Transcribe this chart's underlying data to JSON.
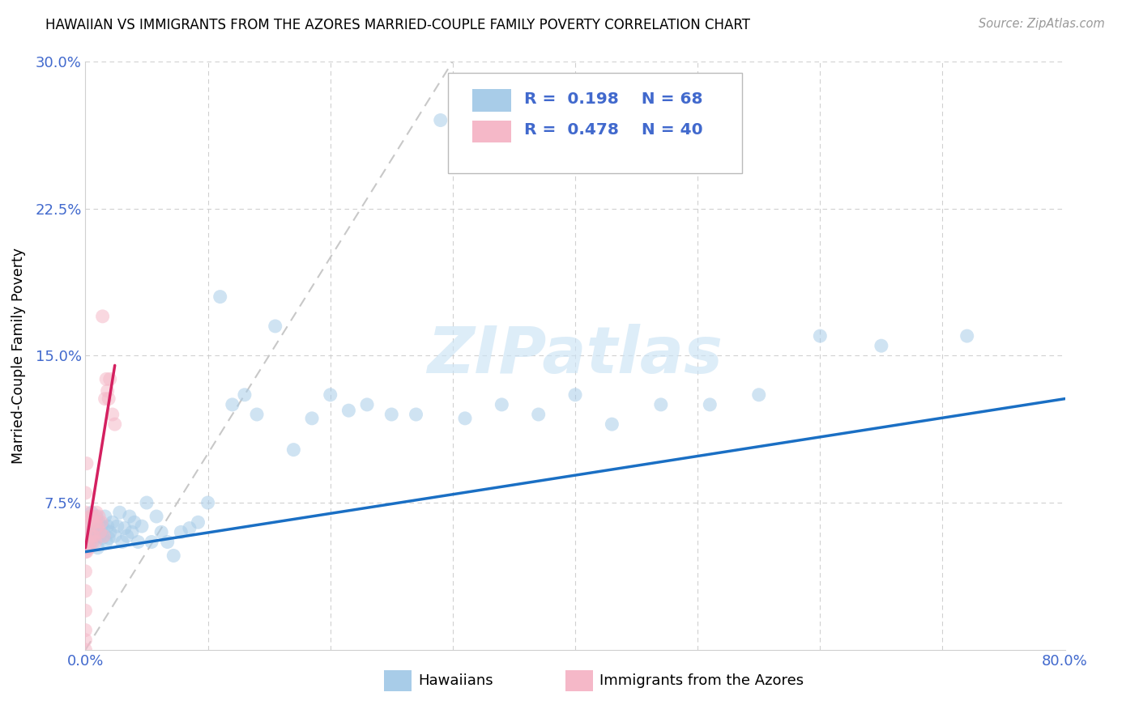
{
  "title": "HAWAIIAN VS IMMIGRANTS FROM THE AZORES MARRIED-COUPLE FAMILY POVERTY CORRELATION CHART",
  "source": "Source: ZipAtlas.com",
  "ylabel": "Married-Couple Family Poverty",
  "xlim": [
    0.0,
    0.8
  ],
  "ylim": [
    0.0,
    0.3
  ],
  "xtick_vals": [
    0.0,
    0.1,
    0.2,
    0.3,
    0.4,
    0.5,
    0.6,
    0.7,
    0.8
  ],
  "xticklabels": [
    "0.0%",
    "",
    "",
    "",
    "",
    "",
    "",
    "",
    "80.0%"
  ],
  "ytick_vals": [
    0.0,
    0.075,
    0.15,
    0.225,
    0.3
  ],
  "yticklabels": [
    "",
    "7.5%",
    "15.0%",
    "22.5%",
    "30.0%"
  ],
  "watermark_text": "ZIPatlas",
  "legend_R1": "0.198",
  "legend_N1": "68",
  "legend_R2": "0.478",
  "legend_N2": "40",
  "color_hawaiian": "#a8cce8",
  "color_azores": "#f5b8c8",
  "color_trend_hawaiian": "#1a6fc4",
  "color_trend_azores": "#d42060",
  "color_diag": "#c8c8c8",
  "color_tick_label": "#4169cd",
  "color_grid": "#d0d0d0",
  "hawaiian_x": [
    0.002,
    0.003,
    0.004,
    0.005,
    0.005,
    0.006,
    0.006,
    0.007,
    0.008,
    0.009,
    0.01,
    0.01,
    0.011,
    0.012,
    0.013,
    0.014,
    0.015,
    0.016,
    0.017,
    0.018,
    0.019,
    0.02,
    0.022,
    0.024,
    0.026,
    0.028,
    0.03,
    0.032,
    0.034,
    0.036,
    0.038,
    0.04,
    0.043,
    0.046,
    0.05,
    0.054,
    0.058,
    0.062,
    0.067,
    0.072,
    0.078,
    0.085,
    0.092,
    0.1,
    0.11,
    0.12,
    0.13,
    0.14,
    0.155,
    0.17,
    0.185,
    0.2,
    0.215,
    0.23,
    0.25,
    0.27,
    0.29,
    0.31,
    0.34,
    0.37,
    0.4,
    0.43,
    0.47,
    0.51,
    0.55,
    0.6,
    0.65,
    0.72
  ],
  "hawaiian_y": [
    0.065,
    0.06,
    0.055,
    0.07,
    0.06,
    0.055,
    0.065,
    0.062,
    0.058,
    0.068,
    0.06,
    0.052,
    0.065,
    0.058,
    0.063,
    0.057,
    0.062,
    0.068,
    0.055,
    0.063,
    0.057,
    0.06,
    0.065,
    0.058,
    0.063,
    0.07,
    0.055,
    0.062,
    0.058,
    0.068,
    0.06,
    0.065,
    0.055,
    0.063,
    0.075,
    0.055,
    0.068,
    0.06,
    0.055,
    0.048,
    0.06,
    0.062,
    0.065,
    0.075,
    0.18,
    0.125,
    0.13,
    0.12,
    0.165,
    0.102,
    0.118,
    0.13,
    0.122,
    0.125,
    0.12,
    0.12,
    0.27,
    0.118,
    0.125,
    0.12,
    0.13,
    0.115,
    0.125,
    0.125,
    0.13,
    0.16,
    0.155,
    0.16
  ],
  "azores_x": [
    0.0,
    0.0,
    0.0,
    0.0,
    0.0,
    0.0,
    0.0,
    0.0,
    0.0,
    0.0,
    0.001,
    0.001,
    0.002,
    0.002,
    0.003,
    0.003,
    0.004,
    0.004,
    0.005,
    0.005,
    0.006,
    0.006,
    0.007,
    0.007,
    0.008,
    0.008,
    0.009,
    0.01,
    0.011,
    0.012,
    0.013,
    0.014,
    0.015,
    0.016,
    0.017,
    0.018,
    0.019,
    0.02,
    0.022,
    0.024
  ],
  "azores_y": [
    0.0,
    0.005,
    0.01,
    0.02,
    0.03,
    0.04,
    0.05,
    0.06,
    0.07,
    0.08,
    0.05,
    0.095,
    0.055,
    0.065,
    0.052,
    0.063,
    0.058,
    0.068,
    0.055,
    0.068,
    0.058,
    0.065,
    0.058,
    0.068,
    0.055,
    0.065,
    0.07,
    0.063,
    0.068,
    0.06,
    0.065,
    0.17,
    0.058,
    0.128,
    0.138,
    0.132,
    0.128,
    0.138,
    0.12,
    0.115
  ],
  "trend_h_x0": 0.0,
  "trend_h_y0": 0.05,
  "trend_h_x1": 0.8,
  "trend_h_y1": 0.128,
  "trend_a_x0": 0.0,
  "trend_a_y0": 0.052,
  "trend_a_x1": 0.024,
  "trend_a_y1": 0.145
}
